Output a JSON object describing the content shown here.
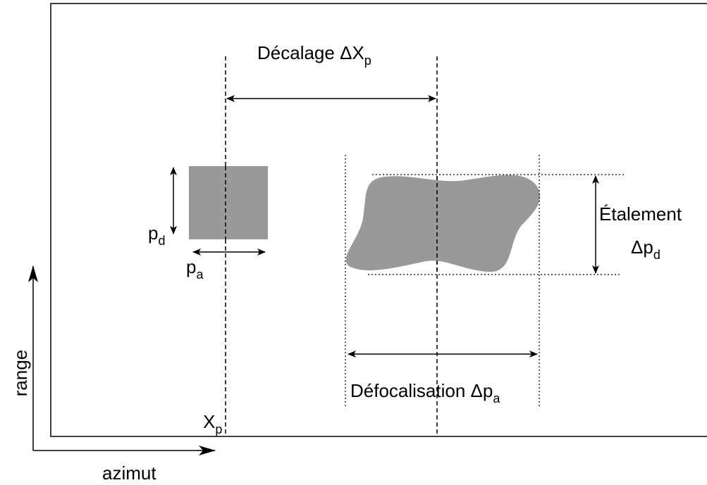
{
  "labels": {
    "shift": {
      "text": "Décalage ΔX",
      "sub": "p"
    },
    "pd": {
      "text": "p",
      "sub": "d"
    },
    "pa": {
      "text": "p",
      "sub": "a"
    },
    "spread": {
      "text": "Étalement",
      "line2": "Δp",
      "sub": "d"
    },
    "defocus": {
      "text": "Défocalisation Δp",
      "sub": "a"
    },
    "xp": {
      "text": "X",
      "sub": "p"
    },
    "range": "range",
    "azimut": "azimut"
  }
}
